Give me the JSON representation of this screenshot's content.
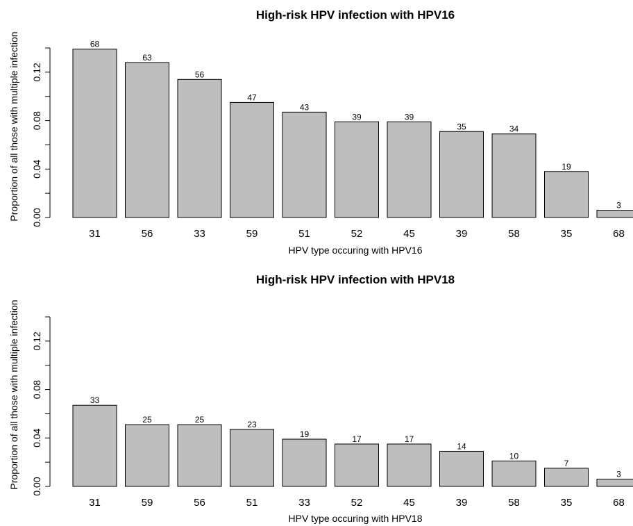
{
  "chart_data": [
    {
      "type": "bar",
      "title": "High-risk HPV infection with HPV16",
      "xlabel": "HPV type occuring with HPV16",
      "ylabel": "Proportion of all those with multiple infection",
      "categories": [
        "31",
        "56",
        "33",
        "59",
        "51",
        "52",
        "45",
        "39",
        "58",
        "35",
        "68"
      ],
      "values": [
        0.139,
        0.128,
        0.114,
        0.095,
        0.087,
        0.079,
        0.079,
        0.071,
        0.069,
        0.038,
        0.006
      ],
      "data_labels": [
        "68",
        "63",
        "56",
        "47",
        "43",
        "39",
        "39",
        "35",
        "34",
        "19",
        "3"
      ],
      "ylim": [
        0,
        0.14
      ],
      "yticks": [
        "0.00",
        "0.04",
        "0.08",
        "0.12"
      ],
      "bar_color": "#bebebe",
      "grid": false
    },
    {
      "type": "bar",
      "title": "High-risk HPV infection with HPV18",
      "xlabel": "HPV type occuring with HPV18",
      "ylabel": "Proportion of all those with multiple infection",
      "categories": [
        "31",
        "59",
        "56",
        "51",
        "33",
        "52",
        "45",
        "39",
        "58",
        "35",
        "68"
      ],
      "values": [
        0.067,
        0.051,
        0.051,
        0.047,
        0.039,
        0.035,
        0.035,
        0.029,
        0.021,
        0.015,
        0.006
      ],
      "data_labels": [
        "33",
        "25",
        "25",
        "23",
        "19",
        "17",
        "17",
        "14",
        "10",
        "7",
        "3"
      ],
      "ylim": [
        0,
        0.14
      ],
      "yticks": [
        "0.00",
        "0.04",
        "0.08",
        "0.12"
      ],
      "bar_color": "#bebebe",
      "grid": false
    }
  ]
}
